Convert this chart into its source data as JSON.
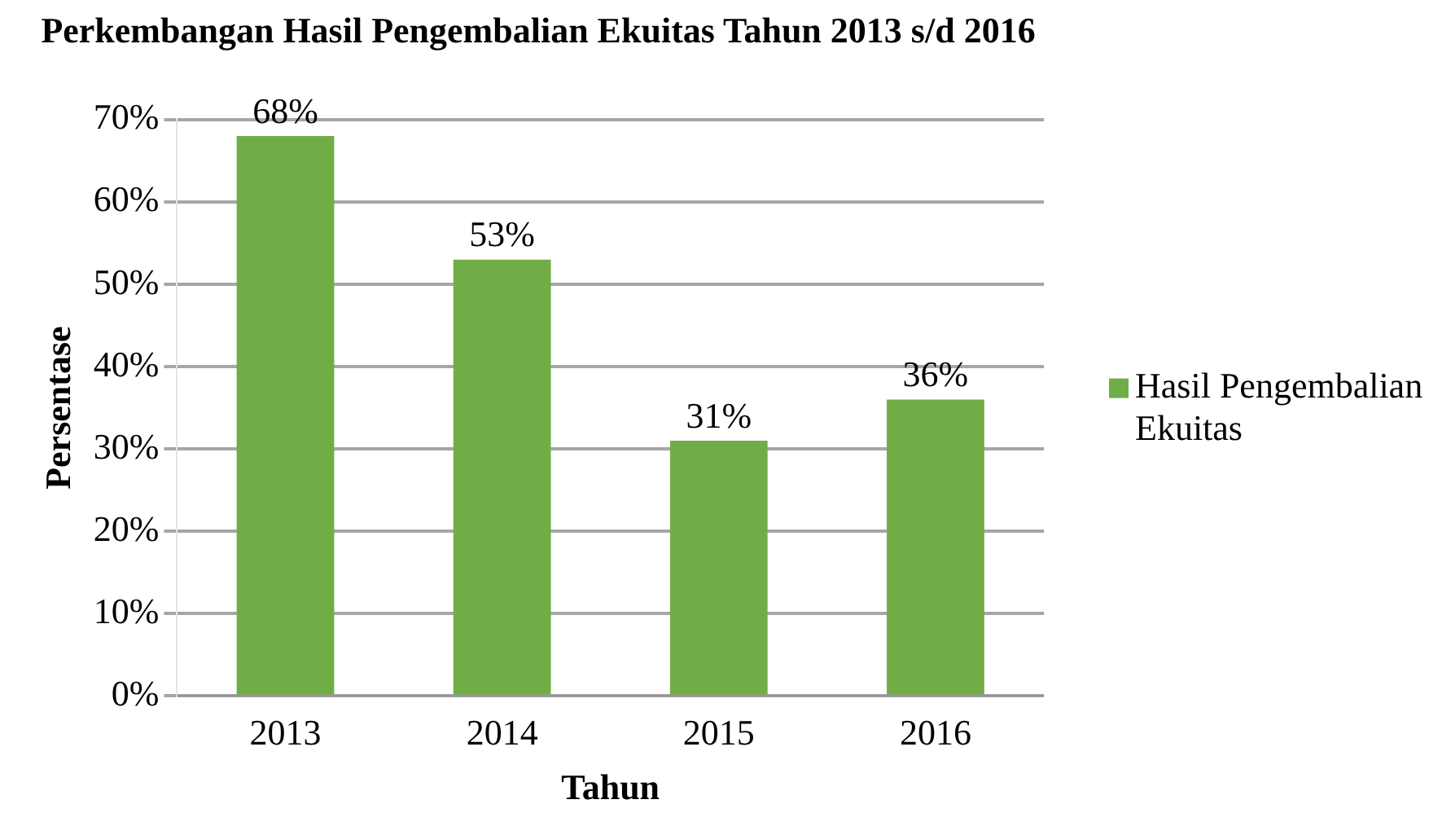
{
  "chart_data": {
    "type": "bar",
    "title": "Perkembangan Hasil Pengembalian Ekuitas Tahun 2013 s/d 2016",
    "xlabel": "Tahun",
    "ylabel": "Persentase",
    "categories": [
      "2013",
      "2014",
      "2015",
      "2016"
    ],
    "series": [
      {
        "name": "Hasil Pengembalian Ekuitas",
        "color": "#70ad47",
        "values": [
          68,
          53,
          31,
          36
        ],
        "value_labels": [
          "68%",
          "53%",
          "31%",
          "36%"
        ]
      }
    ],
    "ylim": [
      0,
      70
    ],
    "yticks": [
      {
        "value": 0,
        "label": "0%"
      },
      {
        "value": 10,
        "label": "10%"
      },
      {
        "value": 20,
        "label": "20%"
      },
      {
        "value": 30,
        "label": "30%"
      },
      {
        "value": 40,
        "label": "40%"
      },
      {
        "value": 50,
        "label": "50%"
      },
      {
        "value": 60,
        "label": "60%"
      },
      {
        "value": 70,
        "label": "70%"
      }
    ],
    "grid": "y",
    "legend": "right"
  }
}
